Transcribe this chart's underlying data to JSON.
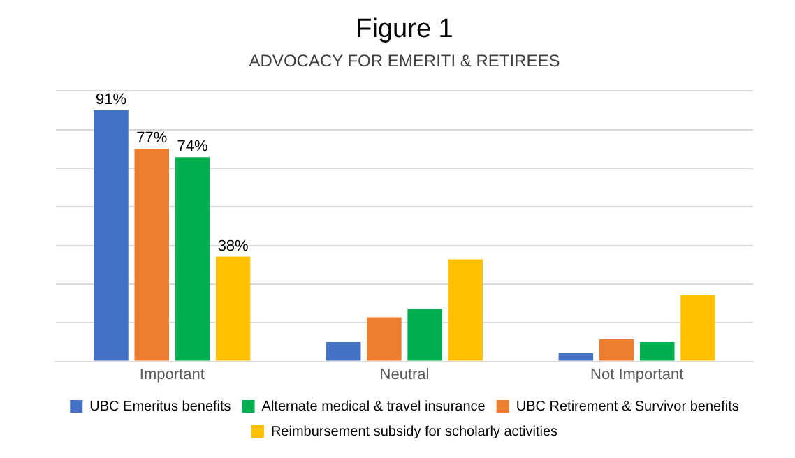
{
  "chart_data": {
    "type": "bar",
    "title": "Figure 1",
    "subtitle": "ADVOCACY FOR EMERITI & RETIREES",
    "categories": [
      "Important",
      "Neutral",
      "Not Important"
    ],
    "series": [
      {
        "name": "UBC Emeritus benefits",
        "color": "#4472c4",
        "values": [
          91,
          7,
          3
        ],
        "value_labels": [
          "91%",
          null,
          null
        ]
      },
      {
        "name": "UBC Retirement & Survivor benefits",
        "color": "#ed7d31",
        "values": [
          77,
          16,
          8
        ],
        "value_labels": [
          "77%",
          null,
          null
        ]
      },
      {
        "name": "Alternate medical & travel insurance",
        "color": "#00b050",
        "values": [
          74,
          19,
          7
        ],
        "value_labels": [
          "74%",
          null,
          null
        ]
      },
      {
        "name": "Reimbursement subsidy for scholarly activities",
        "color": "#ffc000",
        "values": [
          38,
          37,
          24
        ],
        "value_labels": [
          "38%",
          null,
          null
        ]
      }
    ],
    "ylim": [
      0,
      98
    ],
    "yticks": [
      {
        "value": 0,
        "label": null
      },
      {
        "value": 14,
        "label": null
      },
      {
        "value": 28,
        "label": null
      },
      {
        "value": 42,
        "label": null
      },
      {
        "value": 56,
        "label": null
      },
      {
        "value": 70,
        "label": null
      },
      {
        "value": 84,
        "label": null
      },
      {
        "value": 98,
        "label": null
      }
    ],
    "grid": "y",
    "legend": "bottom",
    "tick_labels": "x"
  }
}
